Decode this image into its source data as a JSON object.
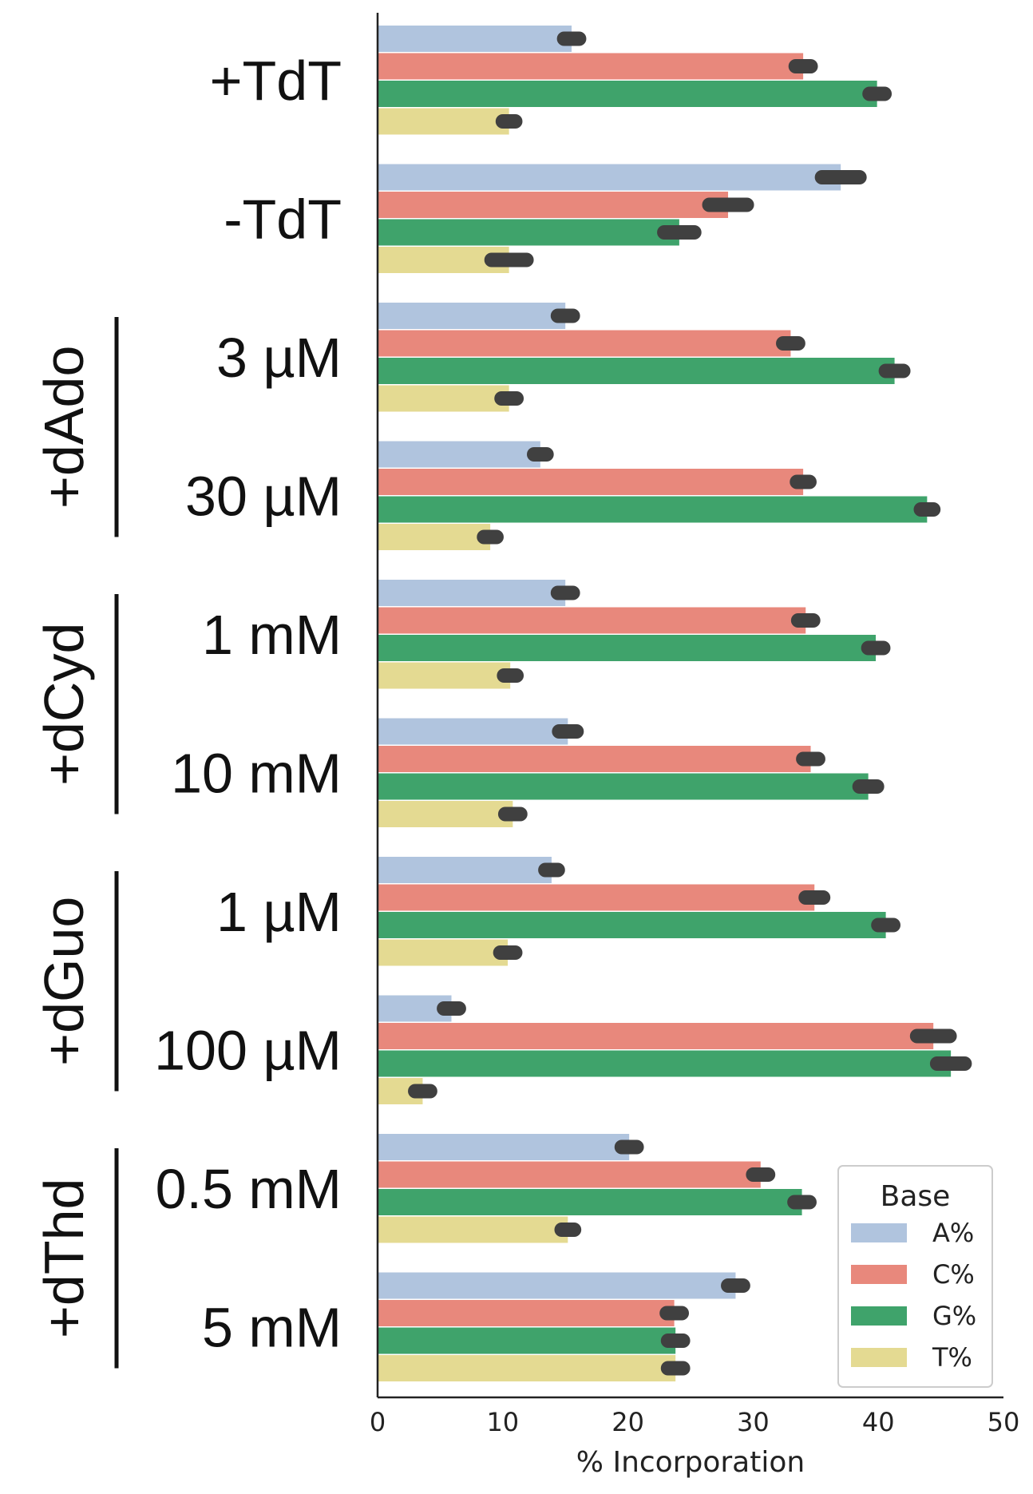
{
  "chart_data": {
    "type": "bar",
    "orientation": "horizontal",
    "categories": [
      "+TdT",
      "-TdT",
      "3 µM",
      "30 µM",
      "1 mM",
      "10 mM",
      "1 µM",
      "100 µM",
      "0.5 mM",
      "5 mM"
    ],
    "groups": [
      {
        "label": "+dAdo",
        "categories": [
          "3 µM",
          "30 µM"
        ]
      },
      {
        "label": "+dCyd",
        "categories": [
          "1 mM",
          "10 mM"
        ]
      },
      {
        "label": "+dGuo",
        "categories": [
          "1 µM",
          "100 µM"
        ]
      },
      {
        "label": "+dThd",
        "categories": [
          "0.5 mM",
          "5 mM"
        ]
      }
    ],
    "series": [
      {
        "name": "A%",
        "color": "#b0c4de",
        "values": [
          15.5,
          37.0,
          15.0,
          13.0,
          15.0,
          15.2,
          13.9,
          5.9,
          20.1,
          28.6
        ],
        "error": [
          0.6,
          1.5,
          0.6,
          0.5,
          0.6,
          0.7,
          0.5,
          0.6,
          0.6,
          0.6
        ]
      },
      {
        "name": "C%",
        "color": "#e8887c",
        "values": [
          34.0,
          28.0,
          33.0,
          34.0,
          34.2,
          34.6,
          34.9,
          44.4,
          30.6,
          23.7
        ],
        "error": [
          0.6,
          1.5,
          0.6,
          0.5,
          0.6,
          0.6,
          0.7,
          1.3,
          0.6,
          0.6
        ]
      },
      {
        "name": "G%",
        "color": "#3fa36b",
        "values": [
          39.9,
          24.1,
          41.3,
          43.9,
          39.8,
          39.2,
          40.6,
          45.8,
          33.9,
          23.8
        ],
        "error": [
          0.6,
          1.2,
          0.7,
          0.5,
          0.6,
          0.7,
          0.6,
          1.1,
          0.6,
          0.6
        ]
      },
      {
        "name": "T%",
        "color": "#e4da92",
        "values": [
          10.5,
          10.5,
          10.5,
          9.0,
          10.6,
          10.8,
          10.4,
          3.6,
          15.2,
          23.8
        ],
        "error": [
          0.5,
          1.4,
          0.6,
          0.5,
          0.5,
          0.6,
          0.6,
          0.6,
          0.5,
          0.6
        ]
      }
    ],
    "xlabel": "% Incorporation",
    "ylabel": "",
    "xlim": [
      0,
      50
    ],
    "xticks": [
      0,
      10,
      20,
      30,
      40,
      50
    ],
    "grid": false,
    "legend": {
      "title": "Base",
      "placement": "bottom-right"
    },
    "errorbar_color": "#404040"
  }
}
